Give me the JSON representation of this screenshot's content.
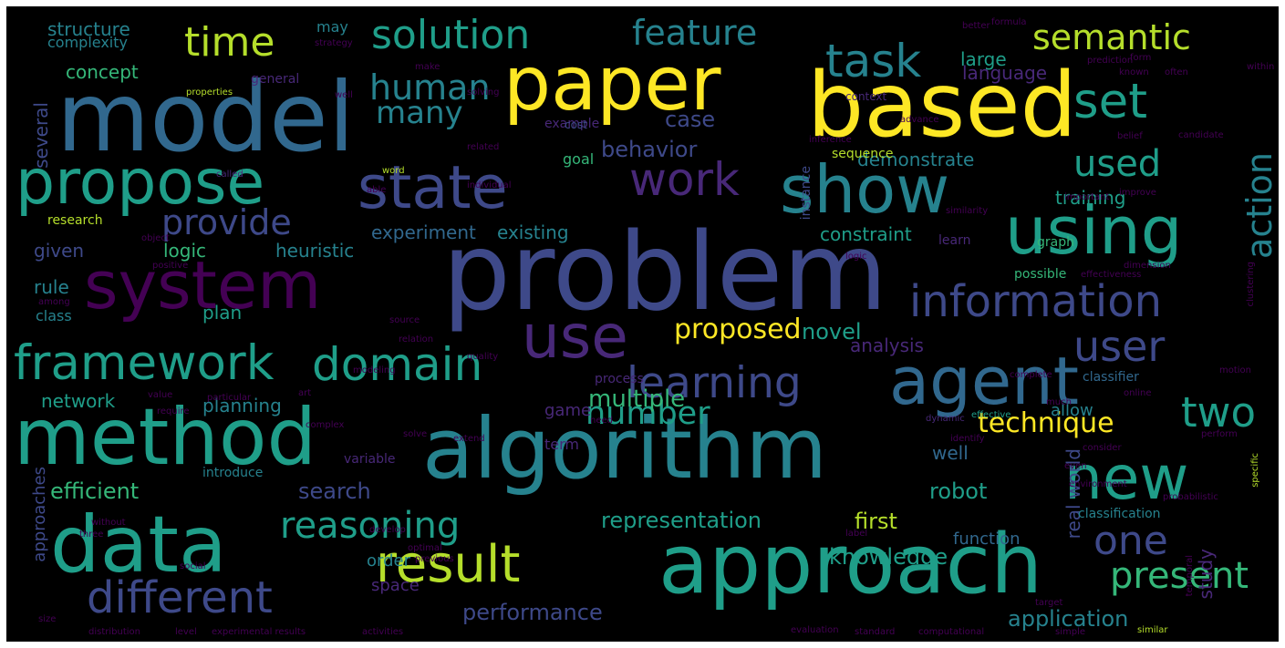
{
  "palette": {
    "yellow": "#fde725",
    "lime": "#b5de2b",
    "green": "#6ece58",
    "seafoam": "#35b779",
    "teal": "#1f9e89",
    "cyan": "#26828e",
    "blue": "#31688e",
    "slate": "#3e4989",
    "indigo": "#482878",
    "purple": "#440154"
  },
  "words": [
    {
      "text": "problem",
      "color": "slate"
    },
    {
      "text": "algorithm",
      "color": "cyan"
    },
    {
      "text": "model",
      "color": "blue"
    },
    {
      "text": "based",
      "color": "yellow"
    },
    {
      "text": "paper",
      "color": "yellow"
    },
    {
      "text": "method",
      "color": "teal"
    },
    {
      "text": "approach",
      "color": "teal"
    },
    {
      "text": "data",
      "color": "teal"
    },
    {
      "text": "system",
      "color": "purple"
    },
    {
      "text": "show",
      "color": "cyan"
    },
    {
      "text": "using",
      "color": "teal"
    },
    {
      "text": "agent",
      "color": "blue"
    },
    {
      "text": "state",
      "color": "slate"
    },
    {
      "text": "propose",
      "color": "teal"
    },
    {
      "text": "use",
      "color": "indigo"
    },
    {
      "text": "new",
      "color": "teal"
    },
    {
      "text": "result",
      "color": "lime"
    },
    {
      "text": "framework",
      "color": "teal"
    },
    {
      "text": "information",
      "color": "slate"
    },
    {
      "text": "different",
      "color": "slate"
    },
    {
      "text": "domain",
      "color": "teal"
    },
    {
      "text": "learning",
      "color": "slate"
    },
    {
      "text": "solution",
      "color": "teal"
    },
    {
      "text": "set",
      "color": "teal"
    },
    {
      "text": "task",
      "color": "cyan"
    },
    {
      "text": "time",
      "color": "lime"
    },
    {
      "text": "feature",
      "color": "cyan"
    },
    {
      "text": "semantic",
      "color": "lime"
    },
    {
      "text": "reasoning",
      "color": "teal"
    },
    {
      "text": "work",
      "color": "indigo"
    },
    {
      "text": "provide",
      "color": "slate"
    },
    {
      "text": "two",
      "color": "teal"
    },
    {
      "text": "user",
      "color": "slate"
    },
    {
      "text": "one",
      "color": "slate"
    },
    {
      "text": "present",
      "color": "seafoam"
    },
    {
      "text": "action",
      "color": "cyan"
    },
    {
      "text": "number",
      "color": "teal"
    },
    {
      "text": "used",
      "color": "teal"
    },
    {
      "text": "technique",
      "color": "yellow"
    },
    {
      "text": "human",
      "color": "cyan"
    },
    {
      "text": "many",
      "color": "cyan"
    },
    {
      "text": "multiple",
      "color": "seafoam"
    },
    {
      "text": "proposed",
      "color": "yellow"
    },
    {
      "text": "representation",
      "color": "teal"
    },
    {
      "text": "performance",
      "color": "slate"
    },
    {
      "text": "knowledge",
      "color": "teal"
    },
    {
      "text": "application",
      "color": "cyan"
    },
    {
      "text": "search",
      "color": "slate"
    },
    {
      "text": "efficient",
      "color": "seafoam"
    },
    {
      "text": "first",
      "color": "lime"
    },
    {
      "text": "robot",
      "color": "teal"
    },
    {
      "text": "case",
      "color": "slate"
    },
    {
      "text": "behavior",
      "color": "slate"
    },
    {
      "text": "concept",
      "color": "seafoam"
    },
    {
      "text": "structure",
      "color": "cyan"
    },
    {
      "text": "complexity",
      "color": "cyan"
    },
    {
      "text": "network",
      "color": "teal"
    },
    {
      "text": "existing",
      "color": "cyan"
    },
    {
      "text": "experiment",
      "color": "blue"
    },
    {
      "text": "constraint",
      "color": "teal"
    },
    {
      "text": "heuristic",
      "color": "cyan"
    },
    {
      "text": "logic",
      "color": "seafoam"
    },
    {
      "text": "given",
      "color": "slate"
    },
    {
      "text": "rule",
      "color": "cyan"
    },
    {
      "text": "class",
      "color": "cyan"
    },
    {
      "text": "plan",
      "color": "teal"
    },
    {
      "text": "planning",
      "color": "cyan"
    },
    {
      "text": "novel",
      "color": "teal"
    },
    {
      "text": "analysis",
      "color": "indigo"
    },
    {
      "text": "demonstrate",
      "color": "cyan"
    },
    {
      "text": "training",
      "color": "teal"
    },
    {
      "text": "goal",
      "color": "seafoam"
    },
    {
      "text": "large",
      "color": "teal"
    },
    {
      "text": "language",
      "color": "indigo"
    },
    {
      "text": "may",
      "color": "cyan"
    },
    {
      "text": "several",
      "color": "slate"
    },
    {
      "text": "approaches",
      "color": "slate"
    },
    {
      "text": "well",
      "color": "blue"
    },
    {
      "text": "allow",
      "color": "cyan"
    },
    {
      "text": "function",
      "color": "blue"
    },
    {
      "text": "order",
      "color": "cyan"
    },
    {
      "text": "space",
      "color": "indigo"
    },
    {
      "text": "term",
      "color": "indigo"
    },
    {
      "text": "game",
      "color": "indigo"
    },
    {
      "text": "study",
      "color": "indigo"
    },
    {
      "text": "real world",
      "color": "slate"
    },
    {
      "text": "classifier",
      "color": "blue"
    },
    {
      "text": "classification",
      "color": "cyan"
    },
    {
      "text": "possible",
      "color": "seafoam"
    },
    {
      "text": "instance",
      "color": "slate"
    },
    {
      "text": "introduce",
      "color": "cyan"
    },
    {
      "text": "variable",
      "color": "indigo"
    },
    {
      "text": "research",
      "color": "lime"
    },
    {
      "text": "general",
      "color": "indigo"
    },
    {
      "text": "example",
      "color": "indigo"
    },
    {
      "text": "process",
      "color": "indigo"
    },
    {
      "text": "sequence",
      "color": "lime"
    },
    {
      "text": "learn",
      "color": "indigo"
    },
    {
      "text": "graph",
      "color": "seafoam"
    },
    {
      "text": "context",
      "color": "indigo"
    },
    {
      "text": "strategy",
      "color": "purple"
    },
    {
      "text": "formula",
      "color": "purple"
    },
    {
      "text": "prediction",
      "color": "purple"
    },
    {
      "text": "solving",
      "color": "purple"
    },
    {
      "text": "properties",
      "color": "lime"
    },
    {
      "text": "cost",
      "color": "slate"
    },
    {
      "text": "related",
      "color": "purple"
    },
    {
      "text": "inference",
      "color": "purple"
    },
    {
      "text": "candidate",
      "color": "purple"
    },
    {
      "text": "belief",
      "color": "purple"
    },
    {
      "text": "called",
      "color": "indigo"
    },
    {
      "text": "word",
      "color": "lime"
    },
    {
      "text": "able",
      "color": "purple"
    },
    {
      "text": "individual",
      "color": "purple"
    },
    {
      "text": "important",
      "color": "purple"
    },
    {
      "text": "similarity",
      "color": "purple"
    },
    {
      "text": "object",
      "color": "purple"
    },
    {
      "text": "positive",
      "color": "purple"
    },
    {
      "text": "among",
      "color": "purple"
    },
    {
      "text": "source",
      "color": "purple"
    },
    {
      "text": "relation",
      "color": "purple"
    },
    {
      "text": "quality",
      "color": "purple"
    },
    {
      "text": "modeling",
      "color": "purple"
    },
    {
      "text": "clustering",
      "color": "purple"
    },
    {
      "text": "effectiveness",
      "color": "purple"
    },
    {
      "text": "dimension",
      "color": "purple"
    },
    {
      "text": "online",
      "color": "purple"
    },
    {
      "text": "effective",
      "color": "teal"
    },
    {
      "text": "dynamic",
      "color": "indigo"
    },
    {
      "text": "identify",
      "color": "purple"
    },
    {
      "text": "consider",
      "color": "purple"
    },
    {
      "text": "environment",
      "color": "purple"
    },
    {
      "text": "specific",
      "color": "lime"
    },
    {
      "text": "probabilistic",
      "color": "purple"
    },
    {
      "text": "target",
      "color": "purple"
    },
    {
      "text": "temporal",
      "color": "purple"
    },
    {
      "text": "label",
      "color": "purple"
    },
    {
      "text": "develop",
      "color": "purple"
    },
    {
      "text": "optimal",
      "color": "purple"
    },
    {
      "text": "three",
      "color": "purple"
    },
    {
      "text": "without",
      "color": "purple"
    },
    {
      "text": "previous",
      "color": "purple"
    },
    {
      "text": "social",
      "color": "purple"
    },
    {
      "text": "size",
      "color": "purple"
    },
    {
      "text": "distribution",
      "color": "purple"
    },
    {
      "text": "level",
      "color": "purple"
    },
    {
      "text": "experimental results",
      "color": "purple"
    },
    {
      "text": "activities",
      "color": "purple"
    },
    {
      "text": "evaluation",
      "color": "purple"
    },
    {
      "text": "standard",
      "color": "purple"
    },
    {
      "text": "computational",
      "color": "purple"
    },
    {
      "text": "simple",
      "color": "purple"
    },
    {
      "text": "similar",
      "color": "lime"
    },
    {
      "text": "need",
      "color": "purple"
    },
    {
      "text": "much",
      "color": "purple"
    },
    {
      "text": "require",
      "color": "purple"
    },
    {
      "text": "extend",
      "color": "purple"
    },
    {
      "text": "solve",
      "color": "purple"
    },
    {
      "text": "complete",
      "color": "purple"
    },
    {
      "text": "art",
      "color": "purple"
    },
    {
      "text": "particular",
      "color": "purple"
    },
    {
      "text": "value",
      "color": "purple"
    },
    {
      "text": "complex",
      "color": "purple"
    },
    {
      "text": "often",
      "color": "purple"
    },
    {
      "text": "known",
      "color": "purple"
    },
    {
      "text": "within",
      "color": "purple"
    },
    {
      "text": "form",
      "color": "purple"
    },
    {
      "text": "better",
      "color": "purple"
    },
    {
      "text": "improve",
      "color": "purple"
    },
    {
      "text": "advance",
      "color": "purple"
    },
    {
      "text": "well",
      "color": "purple"
    },
    {
      "text": "make",
      "color": "purple"
    },
    {
      "text": "logic",
      "color": "purple"
    },
    {
      "text": "perform",
      "color": "purple"
    },
    {
      "text": "motion",
      "color": "purple"
    },
    {
      "text": "even",
      "color": "purple"
    }
  ]
}
